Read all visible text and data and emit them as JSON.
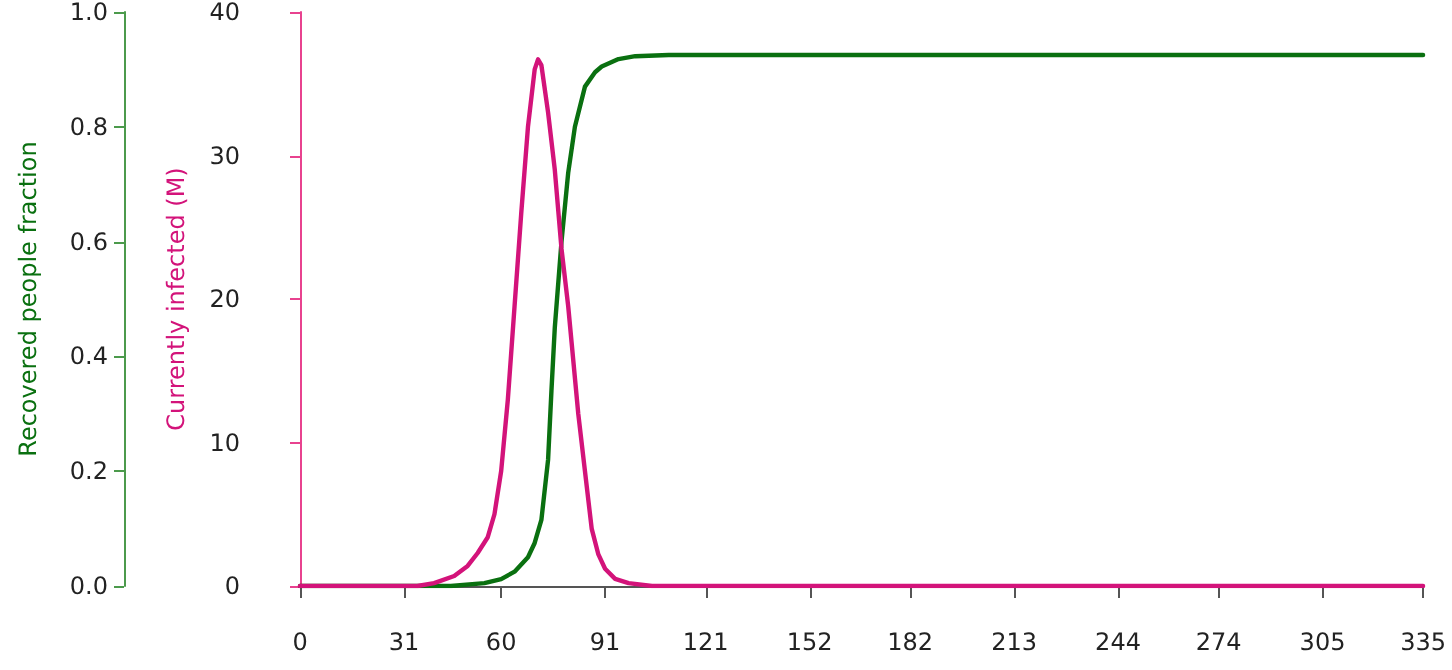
{
  "chart_data": {
    "type": "line",
    "ylabel": "Currently infected (M)",
    "y2label": "Recovered people fraction",
    "xlim": [
      0,
      335
    ],
    "xticks": [
      0,
      31,
      60,
      91,
      121,
      152,
      182,
      213,
      244,
      274,
      305,
      335
    ],
    "ylim": [
      0,
      40
    ],
    "yticks": [
      0,
      10,
      20,
      30,
      40
    ],
    "y2lim": [
      0,
      1
    ],
    "y2ticks": [
      {
        "value": 0,
        "label": "0.0"
      },
      0.2,
      0.4,
      0.6,
      0.8,
      {
        "value": 1,
        "label": "1.0"
      }
    ],
    "series": [
      {
        "color": "#0a7010",
        "axis": "y2",
        "x": [
          0,
          45,
          55,
          60,
          64,
          68,
          70,
          72,
          74,
          75,
          76,
          78,
          80,
          82,
          85,
          88,
          90,
          95,
          100,
          110,
          200,
          335
        ],
        "values": [
          0,
          0,
          0.005,
          0.012,
          0.025,
          0.05,
          0.075,
          0.115,
          0.22,
          0.34,
          0.45,
          0.6,
          0.72,
          0.8,
          0.87,
          0.895,
          0.905,
          0.918,
          0.923,
          0.925,
          0.925,
          0.925
        ]
      },
      {
        "color": "#d3137a",
        "axis": "y",
        "x": [
          0,
          30,
          35,
          40,
          46,
          50,
          53,
          56,
          58,
          60,
          62,
          64,
          66,
          68,
          70,
          71,
          72,
          74,
          76,
          78,
          80,
          81,
          83,
          85,
          87,
          89,
          91,
          94,
          98,
          105,
          200,
          335
        ],
        "values": [
          0,
          0,
          0,
          0.2,
          0.7,
          1.4,
          2.3,
          3.4,
          5,
          8,
          13,
          19.5,
          26,
          32,
          36,
          36.7,
          36.3,
          33,
          29,
          23.5,
          19.5,
          17,
          12,
          8,
          4,
          2.2,
          1.2,
          0.5,
          0.2,
          0,
          0,
          0
        ]
      }
    ]
  }
}
